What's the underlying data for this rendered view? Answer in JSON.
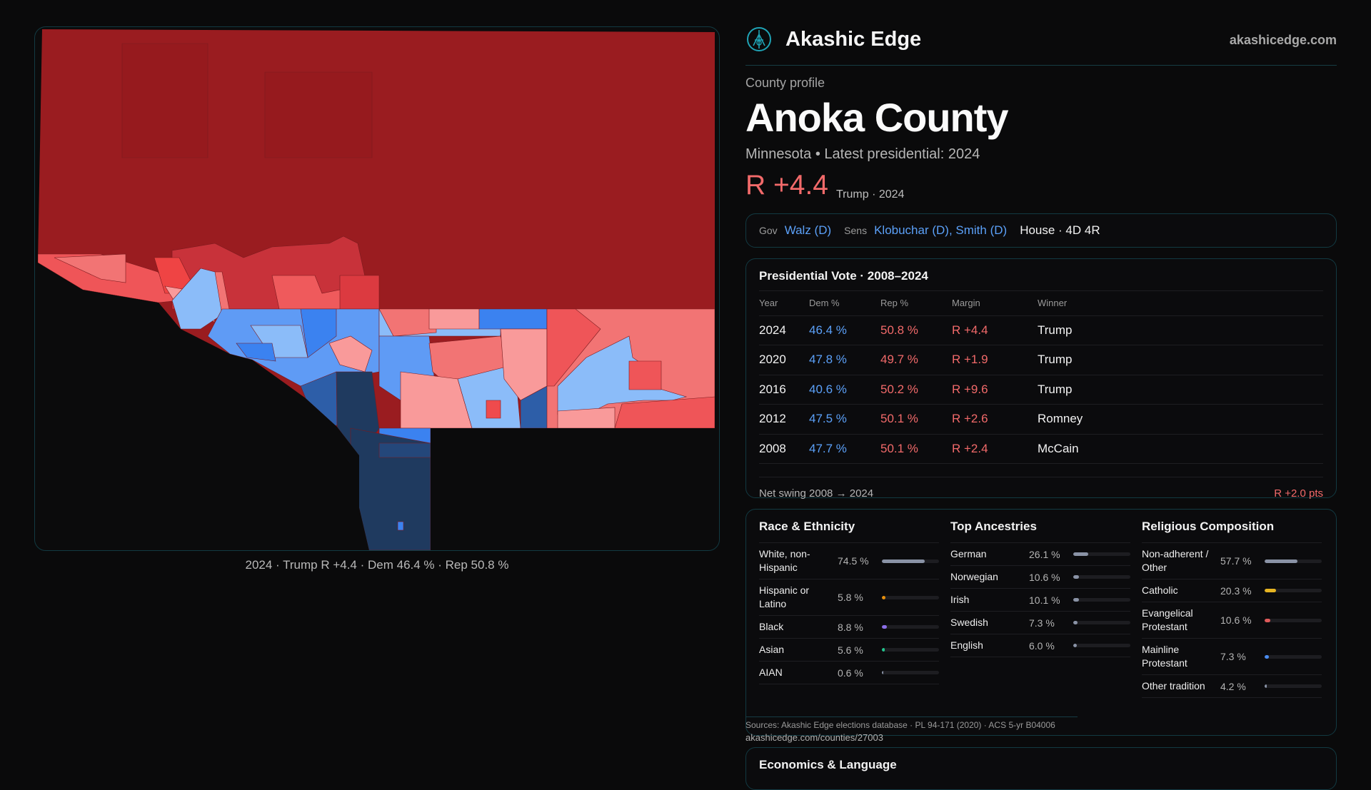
{
  "brand": {
    "name": "Akashic Edge",
    "site": "akashicedge.com",
    "logo": "akashic-edge-logo"
  },
  "profile": {
    "kicker": "County profile",
    "title": "Anoka County",
    "subtitle": "Minnesota • Latest presidential: 2024",
    "margin": "R +4.4",
    "margin_note": "Trump · 2024"
  },
  "officials": {
    "gov_label": "Gov",
    "gov": "Walz (D)",
    "sens_label": "Sens",
    "sens": "Klobuchar (D), Smith (D)",
    "house": "House · 4D 4R"
  },
  "map": {
    "caption": "2024 · Trump R +4.4 · Dem 46.4 % · Rep 50.8 %"
  },
  "presidential": {
    "title": "Presidential Vote · 2008–2024",
    "headers": [
      "Year",
      "Dem %",
      "Rep %",
      "Margin",
      "Winner"
    ],
    "rows": [
      [
        "2024",
        "46.4 %",
        "50.8 %",
        "R +4.4",
        "Trump"
      ],
      [
        "2020",
        "47.8 %",
        "49.7 %",
        "R +1.9",
        "Trump"
      ],
      [
        "2016",
        "40.6 %",
        "50.2 %",
        "R +9.6",
        "Trump"
      ],
      [
        "2012",
        "47.5 %",
        "50.1 %",
        "R +2.6",
        "Romney"
      ],
      [
        "2008",
        "47.7 %",
        "50.1 %",
        "R +2.4",
        "McCain"
      ]
    ],
    "swing_label": "Net swing 2008 → 2024",
    "swing_value": "R +2.0 pts"
  },
  "demographics": [
    {
      "title": "Race & Ethnicity",
      "items": [
        {
          "label": "White, non-Hispanic",
          "value": "74.5 %",
          "pct": 74.5,
          "color": "#8a93a6"
        },
        {
          "label": "Hispanic or Latino",
          "value": "5.8 %",
          "pct": 5.8,
          "color": "#e8900c"
        },
        {
          "label": "Black",
          "value": "8.8 %",
          "pct": 8.8,
          "color": "#8b6ee8"
        },
        {
          "label": "Asian",
          "value": "5.6 %",
          "pct": 5.6,
          "color": "#22c48e"
        },
        {
          "label": "AIAN",
          "value": "0.6 %",
          "pct": 0.6,
          "color": "#8a93a6"
        }
      ]
    },
    {
      "title": "Top Ancestries",
      "items": [
        {
          "label": "German",
          "value": "26.1 %",
          "pct": 26.1,
          "color": "#8a93a6"
        },
        {
          "label": "Norwegian",
          "value": "10.6 %",
          "pct": 10.6,
          "color": "#8a93a6"
        },
        {
          "label": "Irish",
          "value": "10.1 %",
          "pct": 10.1,
          "color": "#8a93a6"
        },
        {
          "label": "Swedish",
          "value": "7.3 %",
          "pct": 7.3,
          "color": "#8a93a6"
        },
        {
          "label": "English",
          "value": "6.0 %",
          "pct": 6.0,
          "color": "#8a93a6"
        }
      ]
    },
    {
      "title": "Religious Composition",
      "items": [
        {
          "label": "Non-adherent / Other",
          "value": "57.7 %",
          "pct": 57.7,
          "color": "#8a93a6"
        },
        {
          "label": "Catholic",
          "value": "20.3 %",
          "pct": 20.3,
          "color": "#e6b422"
        },
        {
          "label": "Evangelical Protestant",
          "value": "10.6 %",
          "pct": 10.6,
          "color": "#e05a5a"
        },
        {
          "label": "Mainline Protestant",
          "value": "7.3 %",
          "pct": 7.3,
          "color": "#4a8cf0"
        },
        {
          "label": "Other tradition",
          "value": "4.2 %",
          "pct": 4.2,
          "color": "#8a93a6"
        }
      ]
    }
  ],
  "sources": "Sources: Akashic Edge elections database · PL 94-171 (2020) · ACS 5-yr B04006",
  "source_url": "akashicedge.com/counties/27003",
  "economics": {
    "title": "Economics & Language"
  },
  "colors": {
    "rep": "#f26a6a",
    "dem": "#5ba0f8",
    "accent": "#1fa3b5"
  }
}
